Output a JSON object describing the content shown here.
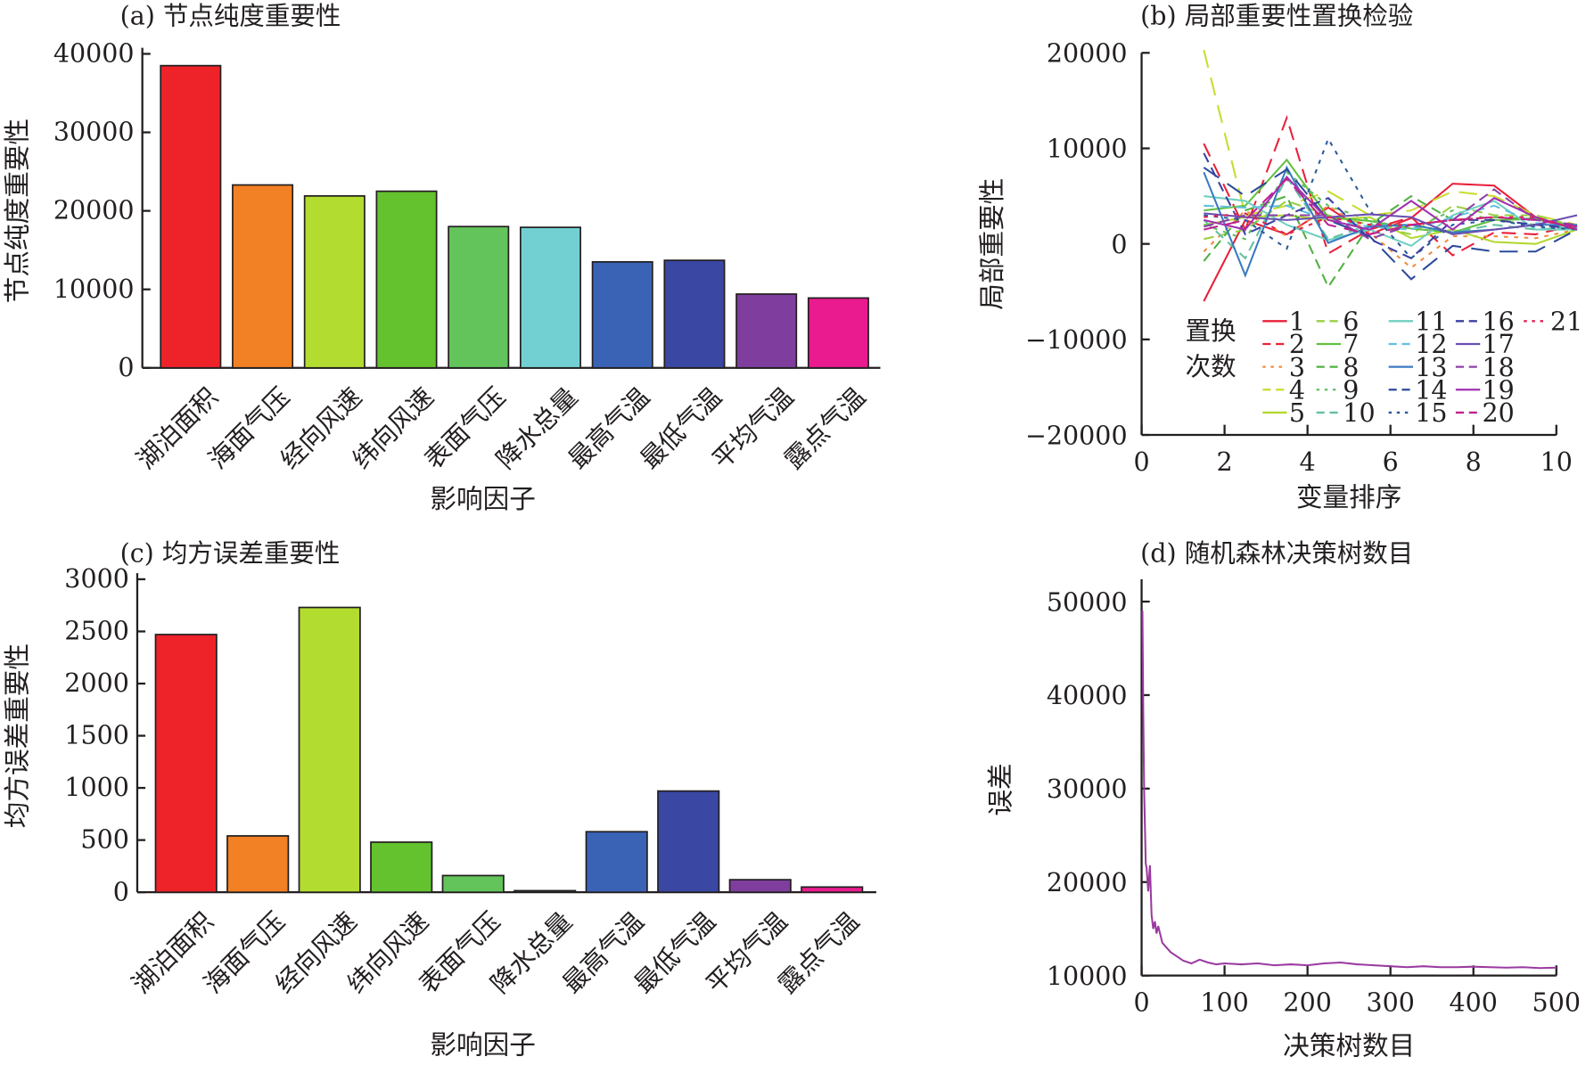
{
  "chart_data": [
    {
      "id": "a",
      "type": "bar",
      "title": "(a) 节点纯度重要性",
      "xlabel": "影响因子",
      "ylabel": "节点纯度重要性",
      "ylim": [
        0,
        40000
      ],
      "yticks": [
        0,
        10000,
        20000,
        30000,
        40000
      ],
      "categories": [
        "湖泊面积",
        "海面气压",
        "经向风速",
        "纬向风速",
        "表面气压",
        "降水总量",
        "最高气温",
        "最低气温",
        "平均气温",
        "露点气温"
      ],
      "values": [
        38500,
        23300,
        21900,
        22500,
        18000,
        17900,
        13500,
        13700,
        9400,
        8900
      ],
      "colors": [
        "#ee2229",
        "#f28024",
        "#b2dc30",
        "#63c22e",
        "#62c45a",
        "#72d0d2",
        "#3a63b6",
        "#3a48a4",
        "#7f3e9e",
        "#ea1b8e"
      ]
    },
    {
      "id": "b",
      "type": "line",
      "title": "(b) 局部重要性置换检验",
      "xlabel": "变量排序",
      "ylabel": "局部重要性",
      "xlim": [
        0,
        10
      ],
      "ylim": [
        -20000,
        20000
      ],
      "xticks": [
        0,
        2,
        4,
        6,
        8,
        10
      ],
      "yticks": [
        -20000,
        -10000,
        0,
        10000,
        20000
      ],
      "legend_title": [
        "置换",
        "次数"
      ],
      "legend_placement": "bottom-center",
      "x": [
        1.5,
        2.5,
        3.5,
        4.5,
        5.5,
        6.5,
        7.5,
        8.5,
        9.5,
        10.5
      ],
      "series": [
        {
          "name": "1",
          "color": "#e8203a",
          "dash": "",
          "values": [
            -6000,
            2500,
            1000,
            3800,
            1000,
            2700,
            6300,
            6100,
            2800,
            1500
          ]
        },
        {
          "name": "2",
          "color": "#e8203a",
          "dash": "14 8",
          "values": [
            10500,
            1500,
            13200,
            -1000,
            1500,
            2800,
            -1200,
            1200,
            1000,
            2000
          ]
        },
        {
          "name": "3",
          "color": "#f28a3a",
          "dash": "4 6",
          "values": [
            -800,
            3500,
            800,
            4000,
            1200,
            -2500,
            800,
            800,
            600,
            1500
          ]
        },
        {
          "name": "4",
          "color": "#c8dc30",
          "dash": "18 10",
          "values": [
            20300,
            3000,
            4000,
            5500,
            3000,
            3500,
            5500,
            5000,
            3000,
            2000
          ]
        },
        {
          "name": "5",
          "color": "#b2d830",
          "dash": "",
          "values": [
            2000,
            2800,
            3000,
            2500,
            2800,
            600,
            1500,
            200,
            0,
            1500
          ]
        },
        {
          "name": "6",
          "color": "#9ad040",
          "dash": "10 6",
          "values": [
            500,
            1500,
            4500,
            3000,
            2000,
            1000,
            4000,
            3000,
            3000,
            1800
          ]
        },
        {
          "name": "7",
          "color": "#62c040",
          "dash": "",
          "values": [
            3500,
            4000,
            8800,
            2800,
            2400,
            1600,
            1200,
            2500,
            2600,
            1800
          ]
        },
        {
          "name": "8",
          "color": "#50b040",
          "dash": "10 6",
          "values": [
            -1800,
            3500,
            5000,
            -4500,
            2000,
            5000,
            2500,
            2800,
            2600,
            1600
          ]
        },
        {
          "name": "9",
          "color": "#60c060",
          "dash": "4 6",
          "values": [
            2000,
            500,
            7500,
            4000,
            2500,
            1500,
            3500,
            2500,
            2000,
            1500
          ]
        },
        {
          "name": "10",
          "color": "#60c0a0",
          "dash": "10 6",
          "values": [
            2500,
            -1500,
            7000,
            500,
            2000,
            2000,
            1200,
            2000,
            1500,
            1800
          ]
        },
        {
          "name": "11",
          "color": "#70d0c0",
          "dash": "",
          "values": [
            5000,
            4500,
            2000,
            400,
            1500,
            -200,
            3000,
            4500,
            1500,
            1500
          ]
        },
        {
          "name": "12",
          "color": "#60c0e0",
          "dash": "10 6",
          "values": [
            4000,
            3800,
            4000,
            2500,
            1800,
            1500,
            2800,
            4000,
            2200,
            1600
          ]
        },
        {
          "name": "13",
          "color": "#3a7ac0",
          "dash": "",
          "values": [
            7500,
            -3300,
            8000,
            100,
            1800,
            2000,
            1200,
            1500,
            2000,
            2000
          ]
        },
        {
          "name": "14",
          "color": "#2a4a9a",
          "dash": "18 10",
          "values": [
            8000,
            5000,
            7800,
            2500,
            800,
            -3700,
            -200,
            -800,
            -800,
            1500
          ]
        },
        {
          "name": "15",
          "color": "#2a5a9a",
          "dash": "4 6",
          "values": [
            3000,
            2500,
            -500,
            11000,
            3500,
            -1500,
            2000,
            2500,
            1800,
            1500
          ]
        },
        {
          "name": "16",
          "color": "#3a40a0",
          "dash": "10 6",
          "values": [
            9500,
            1000,
            3000,
            4800,
            500,
            -1500,
            2500,
            2500,
            2000,
            1600
          ]
        },
        {
          "name": "17",
          "color": "#6a50b0",
          "dash": "",
          "values": [
            3200,
            2800,
            2500,
            2800,
            3100,
            2800,
            1000,
            1500,
            2000,
            3000
          ]
        },
        {
          "name": "18",
          "color": "#8a40a8",
          "dash": "10 6",
          "values": [
            1800,
            3000,
            3000,
            3000,
            500,
            2000,
            2500,
            5700,
            2500,
            2000
          ]
        },
        {
          "name": "19",
          "color": "#a030b0",
          "dash": "",
          "values": [
            2500,
            1500,
            7000,
            2500,
            1500,
            4500,
            1500,
            4800,
            2800,
            1500
          ]
        },
        {
          "name": "20",
          "color": "#c02090",
          "dash": "14 8",
          "values": [
            1500,
            2500,
            6800,
            2000,
            1000,
            2000,
            2500,
            2800,
            2500,
            1800
          ]
        },
        {
          "name": "21",
          "color": "#e02050",
          "dash": "4 6",
          "values": [
            2800,
            3200,
            1000,
            2800,
            2000,
            2000,
            2500,
            2800,
            2800,
            1500
          ]
        }
      ]
    },
    {
      "id": "c",
      "type": "bar",
      "title": "(c) 均方误差重要性",
      "xlabel": "影响因子",
      "ylabel": "均方误差重要性",
      "ylim": [
        0,
        3000
      ],
      "yticks": [
        0,
        500,
        1000,
        1500,
        2000,
        2500,
        3000
      ],
      "categories": [
        "湖泊面积",
        "海面气压",
        "经向风速",
        "纬向风速",
        "表面气压",
        "降水总量",
        "最高气温",
        "最低气温",
        "平均气温",
        "露点气温"
      ],
      "values": [
        2470,
        540,
        2730,
        480,
        160,
        15,
        580,
        970,
        120,
        50
      ],
      "colors": [
        "#ee2229",
        "#f28024",
        "#b2dc30",
        "#63c22e",
        "#62c45a",
        "#72d0d2",
        "#3a63b6",
        "#3a48a4",
        "#7f3e9e",
        "#ea1b8e"
      ]
    },
    {
      "id": "d",
      "type": "line",
      "title": "(d) 随机森林决策树数目",
      "xlabel": "决策树数目",
      "ylabel": "误差",
      "xlim": [
        0,
        500
      ],
      "ylim": [
        10000,
        50000
      ],
      "xticks": [
        0,
        100,
        200,
        300,
        400,
        500
      ],
      "yticks": [
        10000,
        20000,
        30000,
        40000,
        50000
      ],
      "series": [
        {
          "name": "误差",
          "color": "#9a3aa0",
          "x": [
            1,
            2,
            3,
            4,
            5,
            6,
            8,
            10,
            12,
            14,
            16,
            18,
            20,
            25,
            30,
            35,
            40,
            50,
            60,
            70,
            80,
            90,
            100,
            120,
            140,
            160,
            180,
            200,
            220,
            240,
            260,
            280,
            300,
            320,
            340,
            360,
            380,
            400,
            420,
            440,
            460,
            480,
            500
          ],
          "values": [
            49000,
            38000,
            30000,
            26000,
            22000,
            21500,
            19000,
            21800,
            16500,
            15000,
            15800,
            14500,
            15300,
            13500,
            13000,
            12500,
            12200,
            11600,
            11300,
            11700,
            11400,
            11200,
            11300,
            11200,
            11300,
            11100,
            11200,
            11100,
            11300,
            11400,
            11200,
            11100,
            11000,
            10900,
            11000,
            10900,
            10900,
            10950,
            10900,
            10850,
            10900,
            10800,
            10850
          ]
        }
      ]
    }
  ]
}
